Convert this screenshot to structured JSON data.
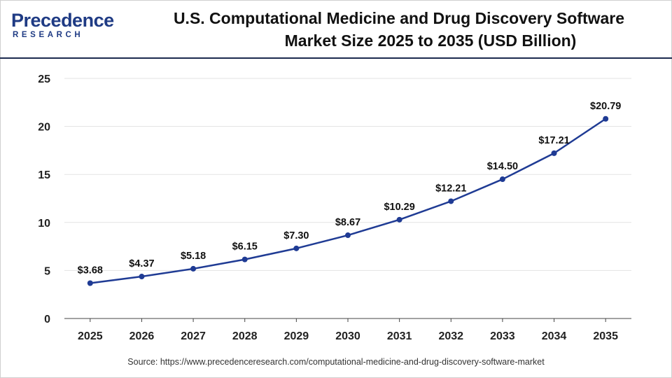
{
  "logo": {
    "word": "Precedence",
    "sub": "RESEARCH"
  },
  "title_line1": "U.S. Computational Medicine and Drug Discovery Software",
  "title_line2": "Market Size 2025 to 2035 (USD Billion)",
  "source": "Source: https://www.precedenceresearch.com/computational-medicine-and-drug-discovery-software-market",
  "colors": {
    "line": "#1f3b94",
    "grid": "#e3e3e3",
    "axis": "#444444",
    "logo": "#1f3b84"
  },
  "chart_data": {
    "type": "line",
    "title": "U.S. Computational Medicine and Drug Discovery Software Market Size 2025 to 2035 (USD Billion)",
    "categories": [
      "2025",
      "2026",
      "2027",
      "2028",
      "2029",
      "2030",
      "2031",
      "2032",
      "2033",
      "2034",
      "2035"
    ],
    "series": [
      {
        "values": [
          3.68,
          4.37,
          5.18,
          6.15,
          7.3,
          8.67,
          10.29,
          12.21,
          14.5,
          17.21,
          20.79
        ],
        "labels": [
          "$3.68",
          "$4.37",
          "$5.18",
          "$6.15",
          "$7.30",
          "$8.67",
          "$10.29",
          "$12.21",
          "$14.50",
          "$17.21",
          "$20.79"
        ]
      }
    ],
    "ylim": [
      0,
      25
    ],
    "yticks": [
      "0",
      "5",
      "10",
      "15",
      "20",
      "25"
    ],
    "grid": true,
    "xlabel": "",
    "ylabel": ""
  }
}
